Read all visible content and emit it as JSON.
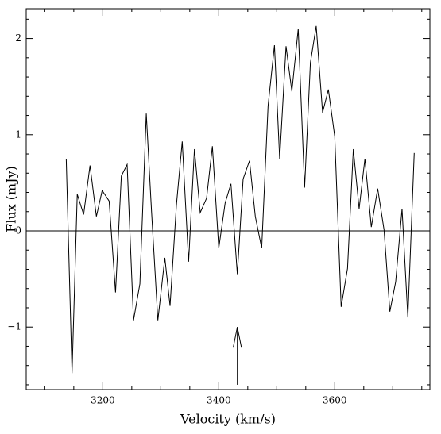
{
  "chart_data": {
    "type": "line",
    "x_label": "Velocity (km/s)",
    "y_label": "Flux (mJy)",
    "xlim": [
      3068,
      3764
    ],
    "ylim": [
      -1.65,
      2.31
    ],
    "xticks": [
      3200,
      3400,
      3600
    ],
    "yticks": [
      {
        "value": -1,
        "label": "−1"
      },
      0,
      1,
      2
    ],
    "xminorticks": [
      3100,
      3150,
      3250,
      3300,
      3350,
      3450,
      3500,
      3550,
      3650,
      3700,
      3750
    ],
    "yminorticks": [
      -1.6,
      -1.4,
      -1.2,
      -0.8,
      -0.6,
      -0.4,
      -0.2,
      0.2,
      0.4,
      0.6,
      0.8,
      1.2,
      1.4,
      1.6,
      1.8,
      2.2
    ],
    "hline": 0,
    "arrow": {
      "x": 3432,
      "y": [
        -1.6,
        -1.0
      ]
    },
    "color": "#000000",
    "x": [
      3137,
      3147,
      3156,
      3167,
      3178,
      3189,
      3199,
      3211,
      3222,
      3232,
      3242,
      3253,
      3264,
      3275,
      3284,
      3295,
      3307,
      3316,
      3327,
      3337,
      3348,
      3358,
      3368,
      3379,
      3389,
      3400,
      3411,
      3421,
      3432,
      3442,
      3453,
      3463,
      3474,
      3485,
      3496,
      3505,
      3516,
      3526,
      3537,
      3548,
      3558,
      3568,
      3579,
      3589,
      3600,
      3611,
      3622,
      3632,
      3642,
      3652,
      3663,
      3674,
      3685,
      3695,
      3705,
      3716,
      3726,
      3737
    ],
    "values": [
      0.75,
      -1.48,
      0.38,
      0.17,
      0.68,
      0.15,
      0.42,
      0.31,
      -0.64,
      0.57,
      0.69,
      -0.93,
      -0.55,
      1.22,
      0.21,
      -0.93,
      -0.28,
      -0.78,
      0.27,
      0.93,
      -0.32,
      0.85,
      0.19,
      0.34,
      0.88,
      -0.18,
      0.29,
      0.49,
      -0.45,
      0.54,
      0.73,
      0.15,
      -0.18,
      1.3,
      1.93,
      0.75,
      1.92,
      1.45,
      2.1,
      0.45,
      1.75,
      2.13,
      1.23,
      1.47,
      0.98,
      -0.79,
      -0.39,
      0.85,
      0.23,
      0.75,
      0.04,
      0.44,
      0.01,
      -0.84,
      -0.53,
      0.23,
      -0.9,
      0.81
    ]
  }
}
